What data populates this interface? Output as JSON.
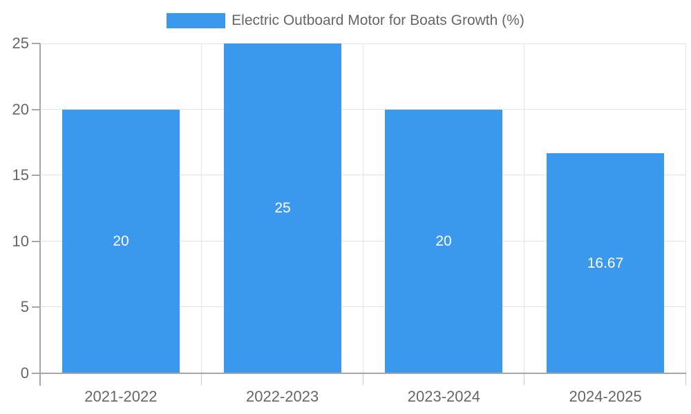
{
  "legend": {
    "label": "Electric Outboard Motor for Boats Growth (%)"
  },
  "chart_data": {
    "type": "bar",
    "title": "Electric Outboard Motor for Boats Growth (%)",
    "categories": [
      "2021-2022",
      "2022-2023",
      "2023-2024",
      "2024-2025"
    ],
    "values": [
      20,
      25,
      20,
      16.67
    ],
    "bar_labels": [
      "20",
      "25",
      "20",
      "16.67"
    ],
    "xlabel": "",
    "ylabel": "",
    "ylim": [
      0,
      25
    ],
    "yticks": [
      0,
      5,
      10,
      15,
      20,
      25
    ],
    "grid": true,
    "legend_position": "top-center"
  },
  "colors": {
    "bar": "#3b99ed",
    "bar_label": "#ffffff",
    "legend_text": "#666666",
    "axis_label": "#666666",
    "grid_line": "#e3e3e3",
    "axis_line": "#a6a6a6",
    "tick": "#c9c9c9",
    "background": "#ffffff"
  }
}
